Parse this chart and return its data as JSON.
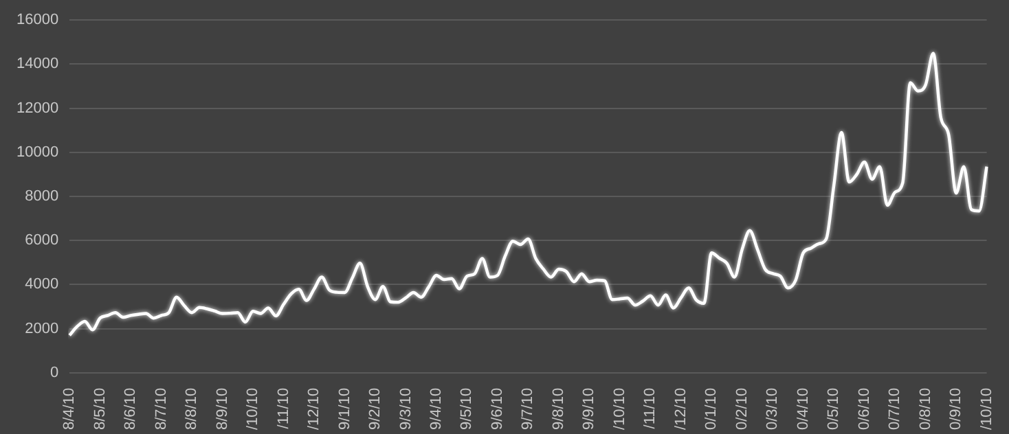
{
  "chart_data": {
    "type": "line",
    "categories": [
      "8/4/10",
      null,
      null,
      null,
      "8/5/10",
      null,
      null,
      null,
      "8/6/10",
      null,
      null,
      null,
      "8/7/10",
      null,
      null,
      null,
      "8/8/10",
      null,
      null,
      null,
      "8/9/10",
      null,
      null,
      null,
      "/10/10",
      null,
      null,
      null,
      "/11/10",
      null,
      null,
      null,
      "/12/10",
      null,
      null,
      null,
      "9/1/10",
      null,
      null,
      null,
      "9/2/10",
      null,
      null,
      null,
      "9/3/10",
      null,
      null,
      null,
      "9/4/10",
      null,
      null,
      null,
      "9/5/10",
      null,
      null,
      null,
      "9/6/10",
      null,
      null,
      null,
      "9/7/10",
      null,
      null,
      null,
      "9/8/10",
      null,
      null,
      null,
      "9/9/10",
      null,
      null,
      null,
      "/10/10",
      null,
      null,
      null,
      "/11/10",
      null,
      null,
      null,
      "/12/10",
      null,
      null,
      null,
      "0/1/10",
      null,
      null,
      null,
      "0/2/10",
      null,
      null,
      null,
      "0/3/10",
      null,
      null,
      null,
      "0/4/10",
      null,
      null,
      null,
      "0/5/10",
      null,
      null,
      null,
      "0/6/10",
      null,
      null,
      null,
      "0/7/10",
      null,
      null,
      null,
      "0/8/10",
      null,
      null,
      null,
      "0/9/10",
      null,
      null,
      null,
      "/10/10"
    ],
    "values": [
      1700,
      2100,
      2330,
      1950,
      2480,
      2600,
      2730,
      2520,
      2600,
      2650,
      2690,
      2480,
      2600,
      2730,
      3430,
      3050,
      2730,
      2960,
      2900,
      2800,
      2690,
      2700,
      2730,
      2300,
      2790,
      2690,
      2940,
      2580,
      3100,
      3580,
      3790,
      3280,
      3800,
      4340,
      3750,
      3650,
      3640,
      4300,
      4970,
      3910,
      3320,
      3910,
      3220,
      3200,
      3400,
      3640,
      3430,
      3900,
      4420,
      4230,
      4270,
      3810,
      4380,
      4490,
      5180,
      4340,
      4420,
      5300,
      5970,
      5820,
      6070,
      5180,
      4700,
      4340,
      4700,
      4590,
      4130,
      4490,
      4130,
      4200,
      4170,
      3320,
      3350,
      3390,
      3070,
      3250,
      3490,
      3070,
      3530,
      2940,
      3400,
      3850,
      3300,
      3150,
      5440,
      5200,
      4970,
      4340,
      5600,
      6450,
      5600,
      4700,
      4500,
      4380,
      3850,
      4200,
      5440,
      5650,
      5850,
      6070,
      8500,
      10900,
      8650,
      9000,
      9560,
      8780,
      9350,
      7600,
      8190,
      8610,
      13160,
      12780,
      13060,
      14490,
      11570,
      10830,
      8150,
      9350,
      7400,
      7340,
      9350
    ],
    "color": "#ffffff",
    "ylim": [
      0,
      16000
    ],
    "yticks": [
      0,
      2000,
      4000,
      6000,
      8000,
      10000,
      12000,
      14000,
      16000
    ],
    "grid": "y",
    "marker": "none"
  }
}
